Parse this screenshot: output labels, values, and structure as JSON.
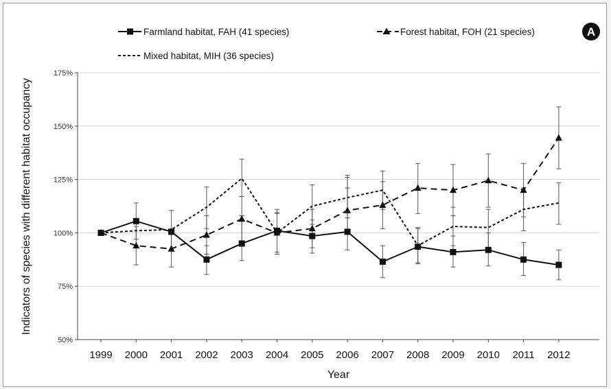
{
  "chart_data": {
    "type": "line",
    "panel_label": "A",
    "title": "",
    "xlabel": "Year",
    "ylabel": "Indicators of species with different habitat occupancy",
    "x": [
      "1999",
      "2000",
      "2001",
      "2002",
      "2003",
      "2004",
      "2005",
      "2006",
      "2007",
      "2008",
      "2009",
      "2010",
      "2011",
      "2012"
    ],
    "ylim": [
      50,
      175
    ],
    "y_ticks": [
      50,
      75,
      100,
      125,
      150,
      175
    ],
    "y_tick_labels": [
      "50%",
      "75%",
      "100%",
      "125%",
      "150%",
      "175%"
    ],
    "grid": "horizontal",
    "legend_position": "top",
    "series": [
      {
        "name": "Farmland habitat, FAH (41 species)",
        "line": "solid",
        "marker": "square",
        "values": [
          100,
          105.5,
          100.5,
          87.5,
          95,
          101,
          98.5,
          100.5,
          86.5,
          93.5,
          91,
          92,
          87.5,
          85
        ],
        "error": [
          [
            100,
            100
          ],
          [
            97,
            114
          ],
          [
            92,
            110.5
          ],
          [
            80.5,
            94
          ],
          [
            87,
            108
          ],
          [
            90,
            111
          ],
          [
            90.5,
            106
          ],
          [
            92,
            127
          ],
          [
            79,
            94
          ],
          [
            85.5,
            102
          ],
          [
            84,
            98.5
          ],
          [
            84.5,
            100
          ],
          [
            80,
            95.5
          ],
          [
            78,
            92
          ]
        ]
      },
      {
        "name": "Forest habitat, FOH (21 species)",
        "line": "dashed",
        "marker": "triangle",
        "values": [
          100,
          94,
          92.5,
          99,
          106.5,
          100,
          102,
          110.5,
          113,
          121,
          120,
          124.5,
          120,
          144.5
        ],
        "error": [
          [
            100,
            100
          ],
          [
            85,
            103
          ],
          [
            84,
            101
          ],
          [
            90,
            108
          ],
          [
            96,
            117
          ],
          [
            91,
            109
          ],
          [
            93,
            111
          ],
          [
            100,
            121
          ],
          [
            102,
            124
          ],
          [
            109,
            132.5
          ],
          [
            108,
            132
          ],
          [
            112,
            137
          ],
          [
            107.5,
            132.5
          ],
          [
            130,
            159
          ]
        ]
      },
      {
        "name": "Mixed habitat, MIH (36 species)",
        "line": "dotted",
        "marker": "none",
        "values": [
          100,
          101,
          101.5,
          112,
          125.5,
          100,
          112.5,
          116.5,
          120,
          94,
          103,
          102.5,
          111,
          114
        ],
        "error": [
          [
            100,
            100
          ],
          [
            100,
            100
          ],
          [
            100,
            100
          ],
          [
            102,
            121.5
          ],
          [
            117,
            134.5
          ],
          [
            90,
            109.5
          ],
          [
            104,
            122.5
          ],
          [
            107,
            126
          ],
          [
            111,
            129
          ],
          [
            86,
            102.5
          ],
          [
            94,
            112
          ],
          [
            92,
            111
          ],
          [
            101,
            121
          ],
          [
            104,
            123.5
          ]
        ]
      }
    ]
  }
}
